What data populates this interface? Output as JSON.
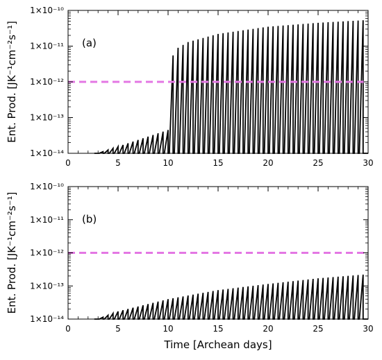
{
  "chart_data": [
    {
      "type": "line",
      "panel_label": "(a)",
      "xlabel": "",
      "ylabel": "Ent. Prod. [JK⁻¹cm⁻²s⁻¹]",
      "xlim": [
        0,
        30
      ],
      "ylim": [
        1e-14,
        1e-10
      ],
      "yscale": "log",
      "x_ticks": [
        0,
        5,
        10,
        15,
        20,
        25,
        30
      ],
      "y_tick_labels": [
        "1×10⁻¹⁴",
        "1×10⁻¹³",
        "1×10⁻¹²",
        "1×10⁻¹¹",
        "1×10⁻¹⁰"
      ],
      "threshold": {
        "value": 1e-12,
        "color": "#e377e3",
        "style": "dashed"
      },
      "series": [
        {
          "color": "#000000",
          "pulse_interval_days": 0.5,
          "peaks": [
            {
              "x": 3.0,
              "y": 1e-14
            },
            {
              "x": 10.0,
              "y": 4.5e-14
            },
            {
              "x": 10.5,
              "y": 5.5e-12
            },
            {
              "x": 11.0,
              "y": 9e-12
            },
            {
              "x": 12.0,
              "y": 1.3e-11
            },
            {
              "x": 15.0,
              "y": 2.2e-11
            },
            {
              "x": 20.0,
              "y": 3.5e-11
            },
            {
              "x": 25.0,
              "y": 4.5e-11
            },
            {
              "x": 29.5,
              "y": 5.3e-11
            }
          ]
        }
      ]
    },
    {
      "type": "line",
      "panel_label": "(b)",
      "xlabel": "Time [Archean days]",
      "ylabel": "Ent. Prod. [JK⁻¹cm⁻²s⁻¹]",
      "xlim": [
        0,
        30
      ],
      "ylim": [
        1e-14,
        1e-10
      ],
      "yscale": "log",
      "x_ticks": [
        0,
        5,
        10,
        15,
        20,
        25,
        30
      ],
      "y_tick_labels": [
        "1×10⁻¹⁴",
        "1×10⁻¹³",
        "1×10⁻¹²",
        "1×10⁻¹¹",
        "1×10⁻¹⁰"
      ],
      "threshold": {
        "value": 1e-12,
        "color": "#e377e3",
        "style": "dashed"
      },
      "series": [
        {
          "color": "#000000",
          "pulse_interval_days": 0.5,
          "peaks": [
            {
              "x": 3.0,
              "y": 1e-14
            },
            {
              "x": 5.0,
              "y": 1.7e-14
            },
            {
              "x": 10.0,
              "y": 4e-14
            },
            {
              "x": 15.0,
              "y": 7.5e-14
            },
            {
              "x": 20.0,
              "y": 1.15e-13
            },
            {
              "x": 25.0,
              "y": 1.7e-13
            },
            {
              "x": 29.5,
              "y": 2.2e-13
            }
          ]
        }
      ]
    }
  ],
  "colors": {
    "axis": "#000000",
    "series": "#000000",
    "threshold": "#e377e3"
  }
}
